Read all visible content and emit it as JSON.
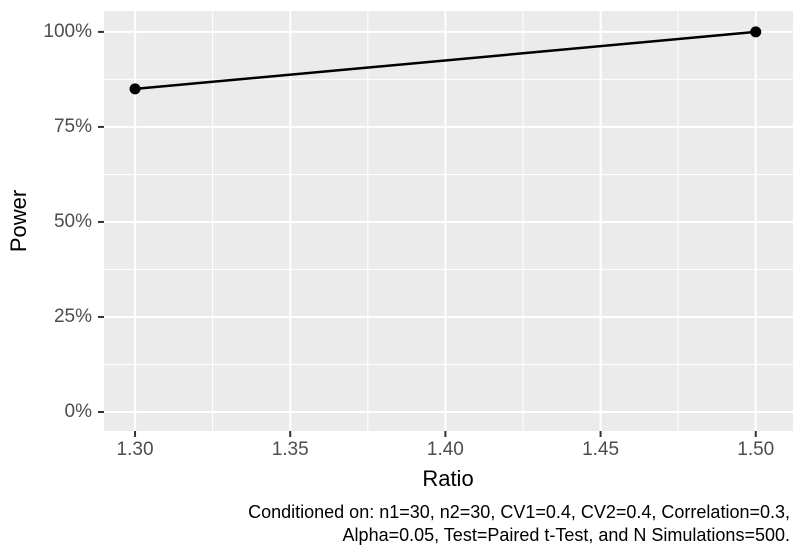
{
  "chart_data": {
    "type": "line",
    "title": "",
    "xlabel": "Ratio",
    "ylabel": "Power",
    "x": [
      1.3,
      1.5
    ],
    "series": [
      {
        "name": "Power",
        "values": [
          85,
          100
        ],
        "color": "#000000",
        "point_radius": 5.5,
        "line_width": 2.5,
        "points": true
      }
    ],
    "y_unit": "percent",
    "xlim": [
      1.29,
      1.512
    ],
    "ylim": [
      -5,
      105.5
    ],
    "x_major_ticks": [
      1.3,
      1.35,
      1.4,
      1.45,
      1.5
    ],
    "x_tick_labels": [
      "1.30",
      "1.35",
      "1.40",
      "1.45",
      "1.50"
    ],
    "x_minor_ticks": [
      1.325,
      1.375,
      1.425,
      1.475
    ],
    "y_major_ticks": [
      0,
      25,
      50,
      75,
      100
    ],
    "y_tick_labels": [
      "0%",
      "25%",
      "50%",
      "75%",
      "100%"
    ],
    "y_minor_ticks": [
      12.5,
      37.5,
      62.5,
      87.5
    ],
    "grid": "major+minor",
    "legend_position": "none",
    "panel_background": "#EBEBEB",
    "grid_color": "#FFFFFF",
    "tick_label_color": "#4D4D4D",
    "axis_title_color": "#000000",
    "tick_mark_color": "#333333",
    "caption": {
      "line1": "Conditioned on: n1=30, n2=30, CV1=0.4, CV2=0.4, Correlation=0.3,",
      "line2": "Alpha=0.05, Test=Paired t-Test, and N Simulations=500.",
      "align": "right",
      "color": "#000000"
    }
  }
}
